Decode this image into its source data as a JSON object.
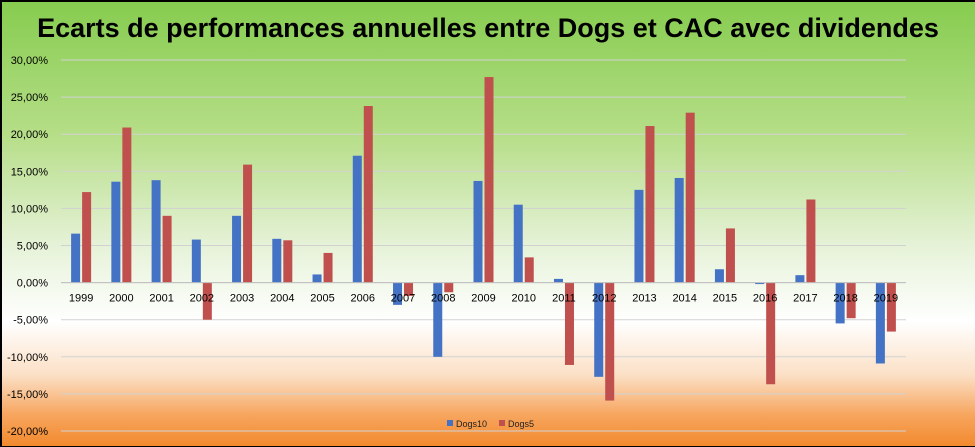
{
  "chart_data": {
    "type": "bar",
    "title": "Ecarts de performances annuelles entre Dogs et CAC avec dividendes",
    "xlabel": "",
    "ylabel": "",
    "ylim": [
      -0.2,
      0.3
    ],
    "ytick_values": [
      0.3,
      0.25,
      0.2,
      0.15,
      0.1,
      0.05,
      0.0,
      -0.05,
      -0.1,
      -0.15,
      -0.2
    ],
    "ytick_labels": [
      "30,00%",
      "25,00%",
      "20,00%",
      "15,00%",
      "10,00%",
      "5,00%",
      "0,00%",
      "-5,00%",
      "-10,00%",
      "-15,00%",
      "-20,00%"
    ],
    "grid": true,
    "legend_position": "bottom",
    "categories": [
      "1999",
      "2000",
      "2001",
      "2002",
      "2003",
      "2004",
      "2005",
      "2006",
      "2007",
      "2008",
      "2009",
      "2010",
      "2011",
      "2012",
      "2013",
      "2014",
      "2015",
      "2016",
      "2017",
      "2018",
      "2019"
    ],
    "series": [
      {
        "name": "Dogs10",
        "color": "#4472C4",
        "values": [
          0.066,
          0.136,
          0.138,
          0.058,
          0.09,
          0.059,
          0.011,
          0.171,
          -0.03,
          -0.1,
          0.137,
          0.105,
          0.005,
          -0.127,
          0.125,
          0.141,
          0.018,
          -0.002,
          0.01,
          -0.055,
          -0.109
        ]
      },
      {
        "name": "Dogs5",
        "color": "#C0504D",
        "values": [
          0.122,
          0.209,
          0.09,
          -0.05,
          0.159,
          0.057,
          0.04,
          0.238,
          -0.018,
          -0.013,
          0.277,
          0.034,
          -0.111,
          -0.159,
          0.211,
          0.229,
          0.073,
          -0.137,
          0.112,
          -0.048,
          -0.066
        ]
      }
    ]
  }
}
